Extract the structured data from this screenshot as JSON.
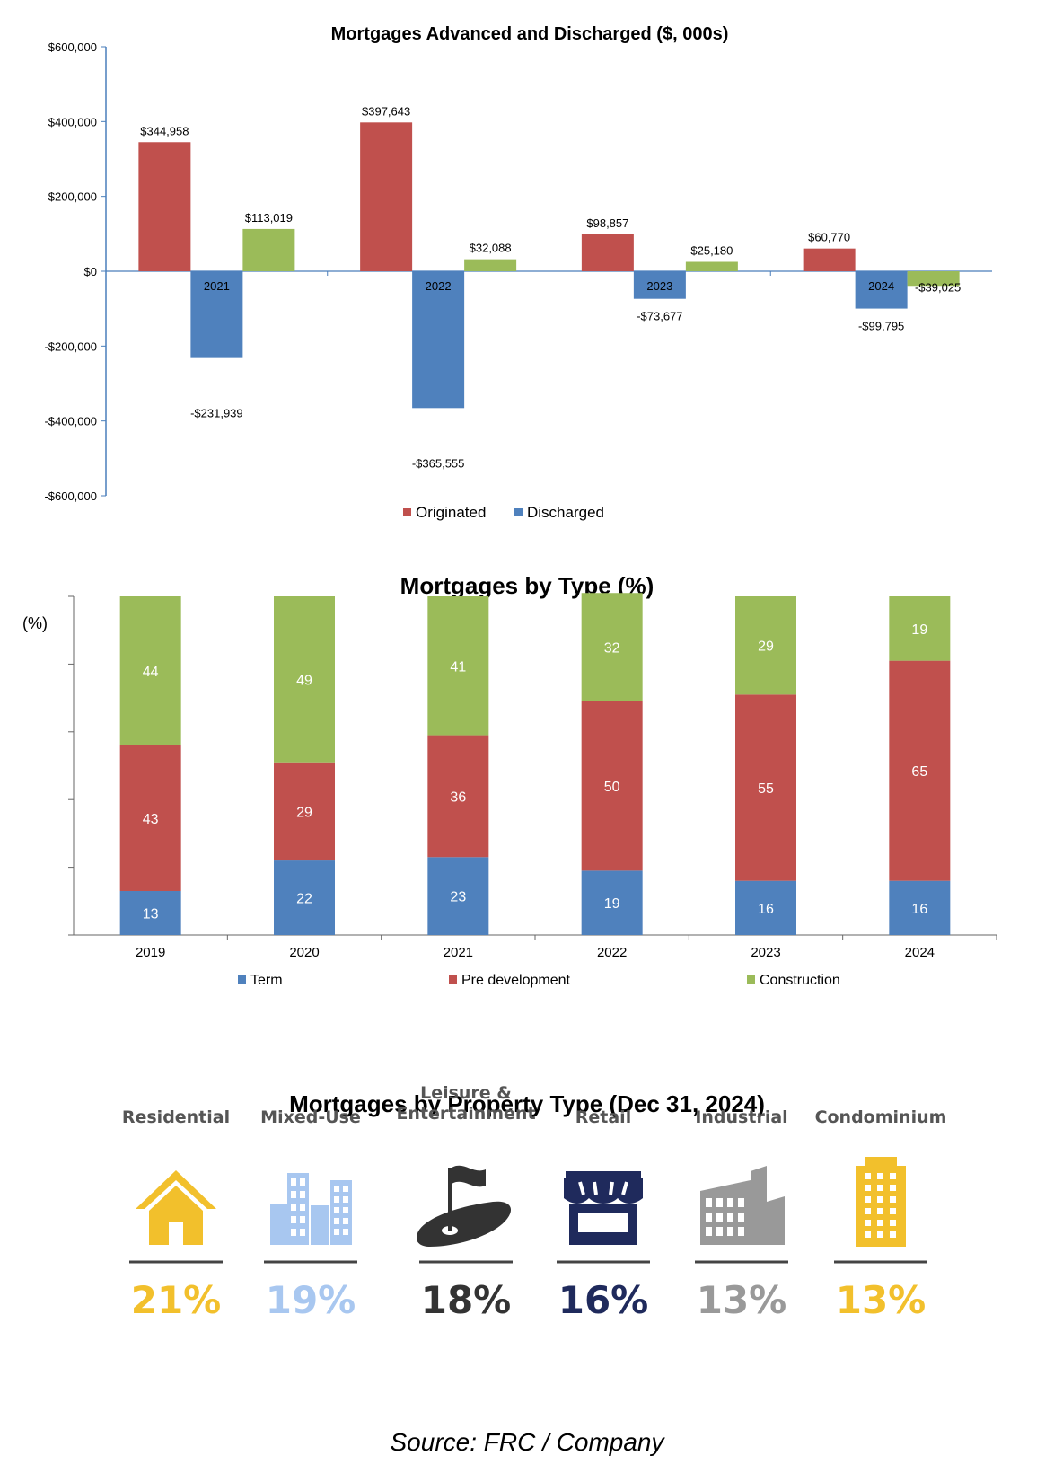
{
  "chart_data": [
    {
      "type": "bar",
      "title": "Mortgages Advanced and Discharged ($, 000s)",
      "categories": [
        "2021",
        "2022",
        "2023",
        "2024"
      ],
      "series": [
        {
          "name": "Originated",
          "color": "#c0504d",
          "values": [
            344958,
            397643,
            98857,
            60770
          ],
          "labels": [
            "$344,958",
            "$397,643",
            "$98,857",
            "$60,770"
          ]
        },
        {
          "name": "Discharged",
          "color": "#4f81bd",
          "values": [
            -231939,
            -365555,
            -73677,
            -99795
          ],
          "labels": [
            "-$231,939",
            "-$365,555",
            "-$73,677",
            "-$99,795"
          ]
        },
        {
          "name": "",
          "color": "#9bbb59",
          "values": [
            113019,
            32088,
            25180,
            -39025
          ],
          "labels": [
            "$113,019",
            "$32,088",
            "$25,180",
            "-$39,025"
          ]
        }
      ],
      "yticks": [
        "$600,000",
        "$400,000",
        "$200,000",
        "$0",
        "-$200,000",
        "-$400,000",
        "-$600,000"
      ],
      "ylim": [
        -600000,
        600000
      ],
      "legend": "bottom"
    },
    {
      "type": "bar",
      "stacked": true,
      "title": "Mortgages by Type (%)",
      "ylabel": "(%)",
      "categories": [
        "2019",
        "2020",
        "2021",
        "2022",
        "2023",
        "2024"
      ],
      "series": [
        {
          "name": "Term",
          "color": "#4f81bd",
          "values": [
            13,
            22,
            23,
            19,
            16,
            16
          ]
        },
        {
          "name": "Pre development",
          "color": "#c0504d",
          "values": [
            43,
            29,
            36,
            50,
            55,
            65
          ]
        },
        {
          "name": "Construction",
          "color": "#9bbb59",
          "values": [
            44,
            49,
            41,
            32,
            29,
            19
          ]
        }
      ],
      "ylim": [
        0,
        100
      ],
      "legend": "bottom"
    }
  ],
  "property": {
    "title": "Mortgages by Property Type (Dec 31, 2024)",
    "items": [
      {
        "label": "Residential",
        "label2": "",
        "pct": "21%",
        "color": "#f2c02c",
        "icon": "house-icon"
      },
      {
        "label": "Mixed-Use",
        "label2": "",
        "pct": "19%",
        "color": "#a8c7f0",
        "icon": "buildings-icon"
      },
      {
        "label": "Leisure &",
        "label2": "Entertainment",
        "pct": "18%",
        "color": "#333333",
        "icon": "golf-flag-icon"
      },
      {
        "label": "Retail",
        "label2": "",
        "pct": "16%",
        "color": "#1f2a5c",
        "icon": "storefront-icon"
      },
      {
        "label": "Industrial",
        "label2": "",
        "pct": "13%",
        "color": "#999999",
        "icon": "factory-icon"
      },
      {
        "label": "Condominium",
        "label2": "",
        "pct": "13%",
        "color": "#f2c02c",
        "icon": "tower-icon"
      }
    ]
  },
  "source": "Source: FRC / Company"
}
